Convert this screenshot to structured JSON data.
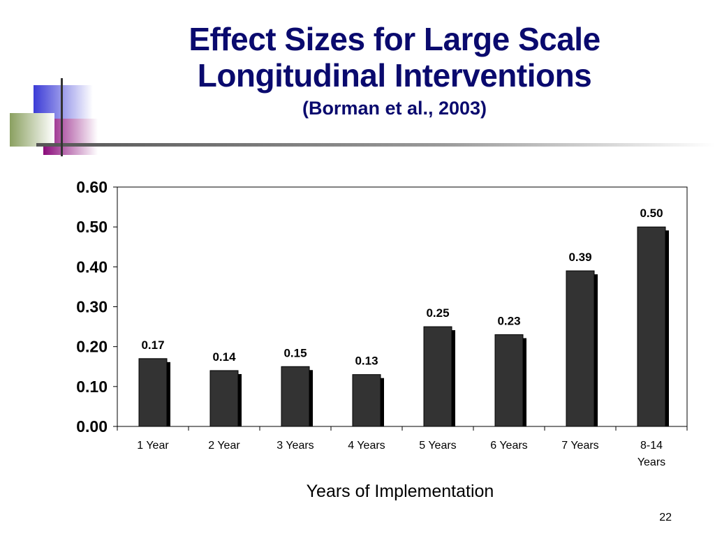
{
  "slide": {
    "title_line1": "Effect Sizes for Large Scale",
    "title_line2": "Longitudinal Interventions",
    "subtitle": "(Borman et al., 2003)",
    "page_number": "22",
    "colors": {
      "title": "#0a0a6e",
      "bar": "#333333",
      "bar_shadow": "#000000",
      "decor_blue": "#3b3bd6",
      "decor_purple": "#8a0a7a",
      "decor_green": "#8aa060"
    }
  },
  "chart_data": {
    "type": "bar",
    "categories": [
      "1 Year",
      "2 Year",
      "3 Years",
      "4 Years",
      "5 Years",
      "6 Years",
      "7 Years",
      "8-14 Years"
    ],
    "values": [
      0.17,
      0.14,
      0.15,
      0.13,
      0.25,
      0.23,
      0.39,
      0.5
    ],
    "value_labels": [
      "0.17",
      "0.14",
      "0.15",
      "0.13",
      "0.25",
      "0.23",
      "0.39",
      "0.50"
    ],
    "y_ticks": [
      "0.00",
      "0.10",
      "0.20",
      "0.30",
      "0.40",
      "0.50",
      "0.60"
    ],
    "ylim": [
      0,
      0.6
    ],
    "xlabel": "Years of Implementation",
    "ylabel": "",
    "grid": false,
    "legend": "none"
  }
}
